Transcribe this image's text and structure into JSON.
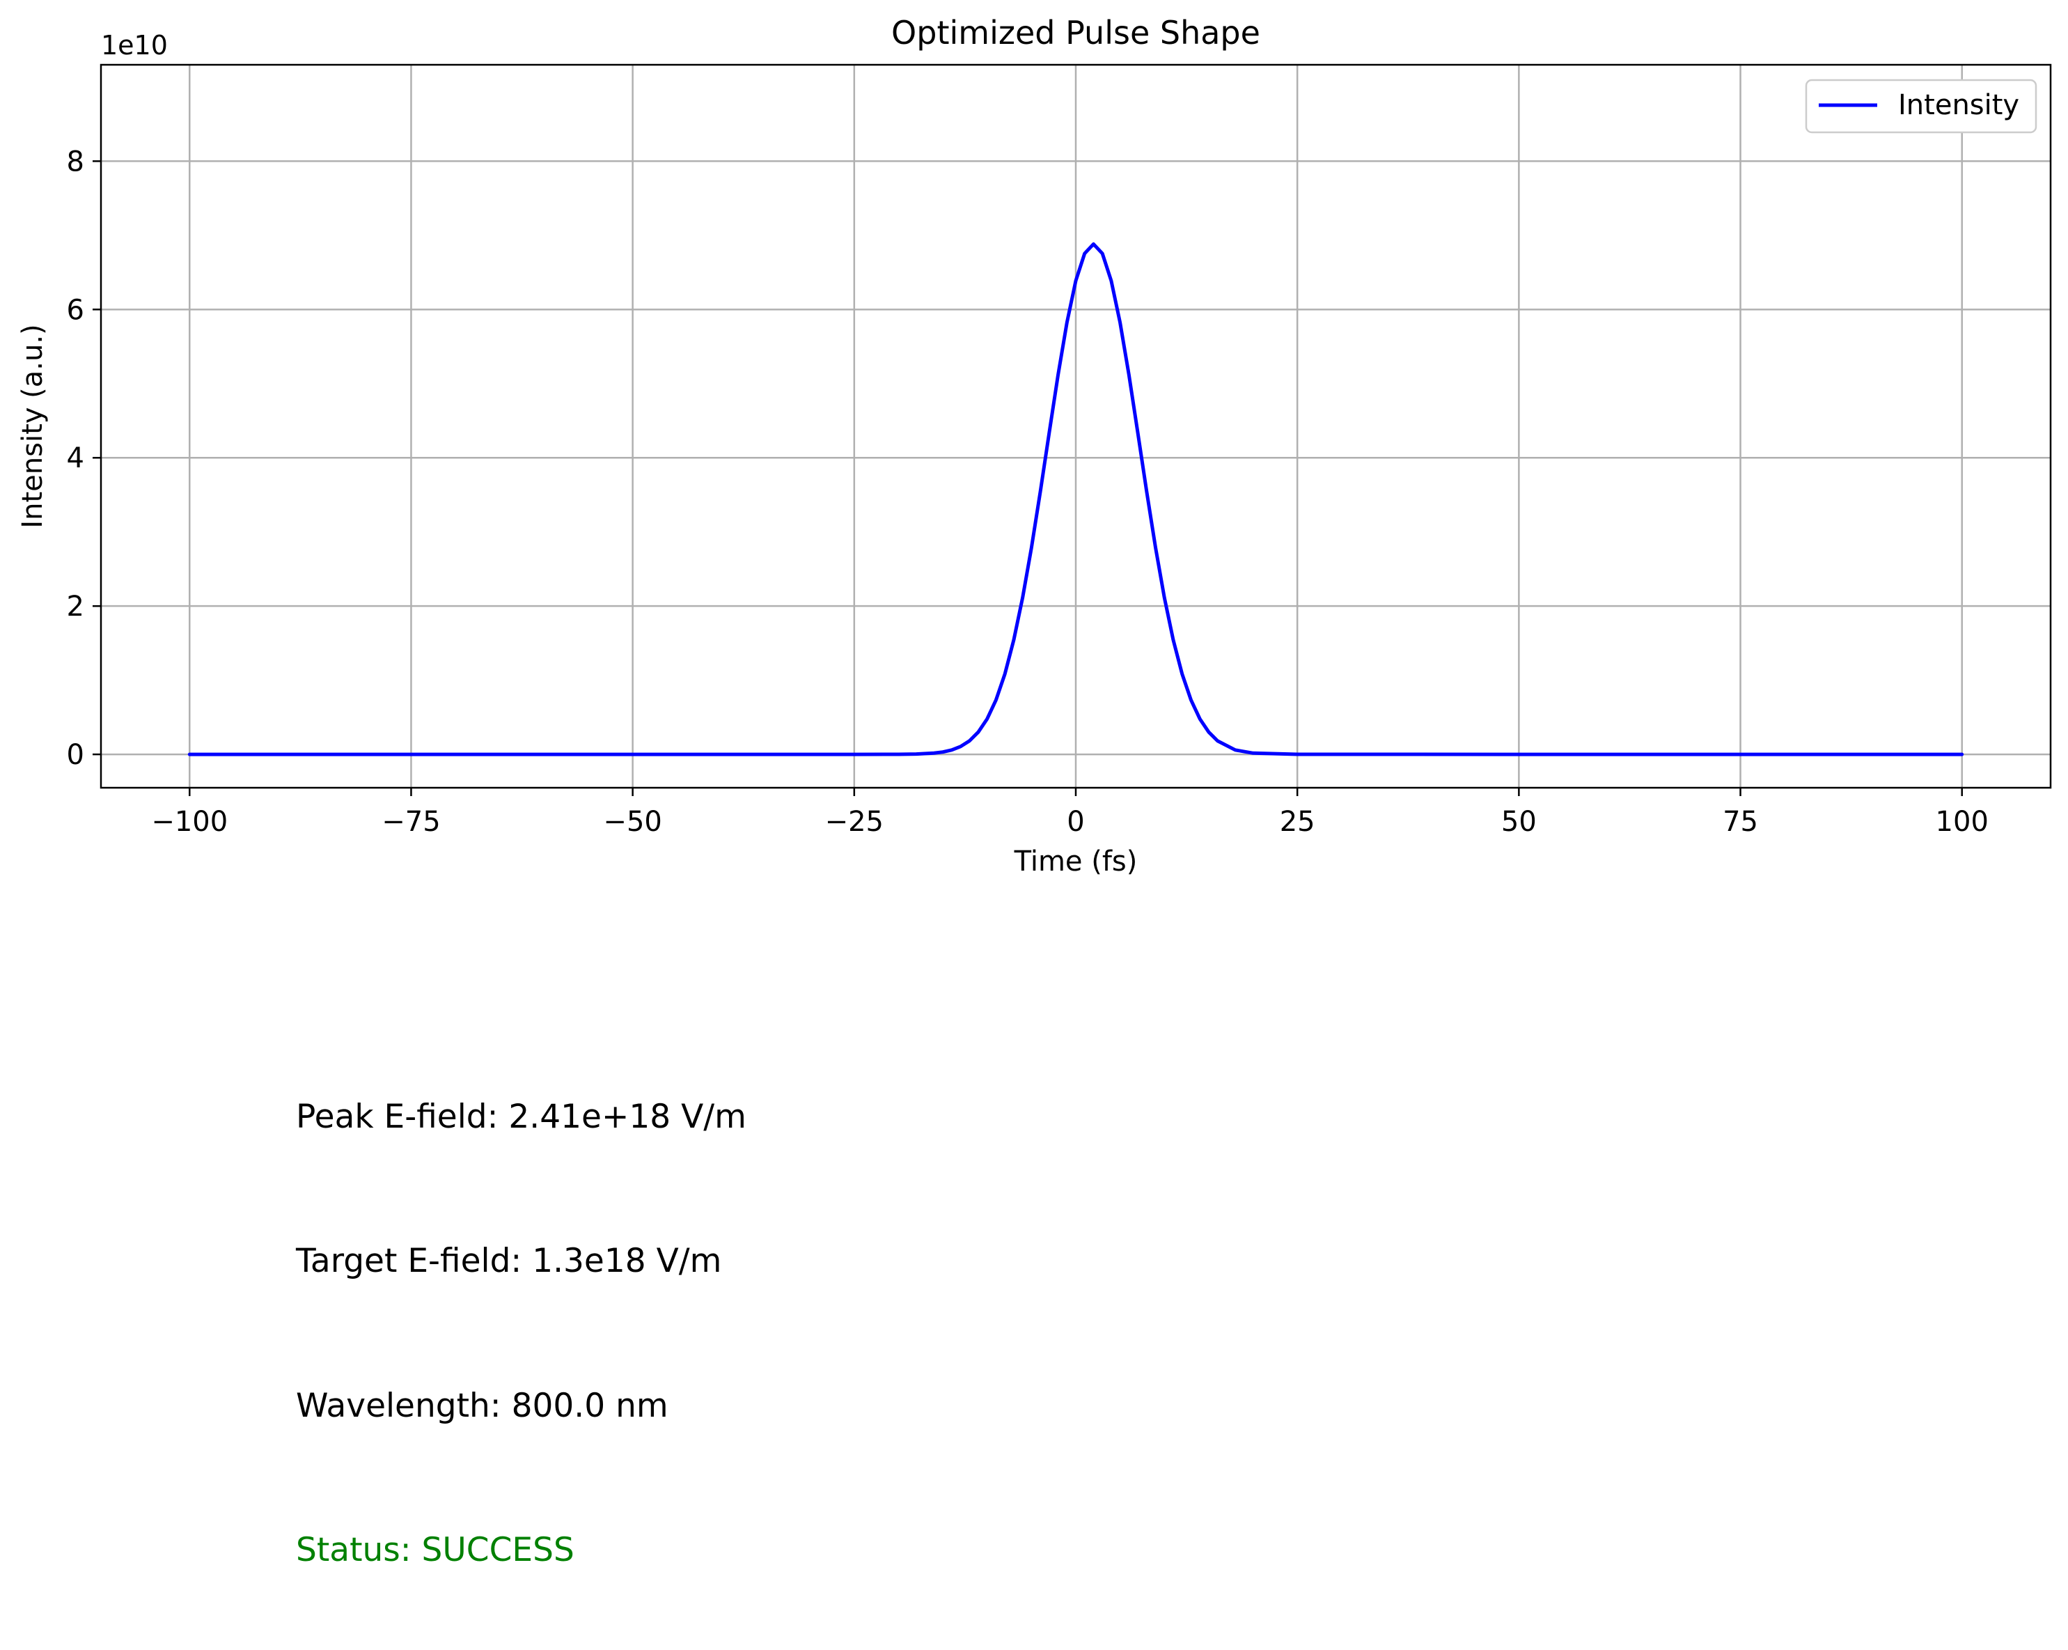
{
  "chart_data": {
    "type": "line",
    "title": "Optimized Pulse Shape",
    "xlabel": "Time (fs)",
    "ylabel": "Intensity (a.u.)",
    "y_offset_label": "1e10",
    "xlim": [
      -110,
      110
    ],
    "ylim": [
      -0.45,
      9.3
    ],
    "x_ticks": [
      -100,
      -75,
      -50,
      -25,
      0,
      25,
      50,
      75,
      100
    ],
    "x_tick_labels": [
      "−100",
      "−75",
      "−50",
      "−25",
      "0",
      "25",
      "50",
      "75",
      "100"
    ],
    "y_ticks": [
      0,
      2,
      4,
      6,
      8
    ],
    "y_tick_labels": [
      "0",
      "2",
      "4",
      "6",
      "8"
    ],
    "grid": true,
    "legend_position": "top-right",
    "series": [
      {
        "name": "Intensity",
        "color": "#0000ff",
        "x": [
          -100,
          -75,
          -50,
          -25,
          -20,
          -18,
          -16,
          -15,
          -14,
          -13,
          -12,
          -11,
          -10,
          -9,
          -8,
          -7,
          -6,
          -5,
          -4,
          -3,
          -2,
          -1,
          0,
          1,
          2,
          3,
          4,
          5,
          6,
          7,
          8,
          9,
          10,
          11,
          12,
          13,
          14,
          15,
          16,
          18,
          20,
          25,
          50,
          75,
          100
        ],
        "values": [
          0,
          0,
          0,
          0,
          0.001,
          0.004,
          0.017,
          0.032,
          0.059,
          0.106,
          0.182,
          0.301,
          0.479,
          0.734,
          1.084,
          1.542,
          2.113,
          2.788,
          3.543,
          4.336,
          5.117,
          5.822,
          6.387,
          6.755,
          6.882,
          6.755,
          6.387,
          5.822,
          5.117,
          4.336,
          3.543,
          2.788,
          2.113,
          1.542,
          1.084,
          0.734,
          0.479,
          0.301,
          0.182,
          0.059,
          0.017,
          0.001,
          0,
          0,
          0
        ]
      }
    ]
  },
  "info": {
    "peak_efield": "Peak E-field: 2.41e+18 V/m",
    "target_efield": "Target E-field: 1.3e18 V/m",
    "wavelength": "Wavelength: 800.0 nm",
    "status": "Status: SUCCESS",
    "status_color": "#008000"
  }
}
